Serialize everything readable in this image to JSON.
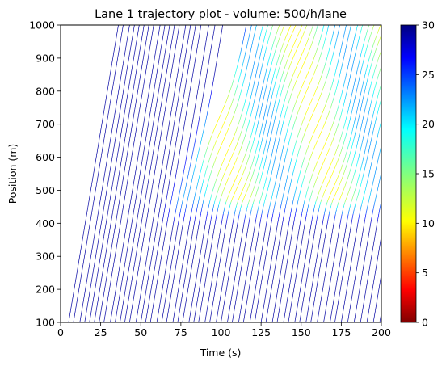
{
  "chart_data": {
    "type": "line",
    "title": "Lane 1 trajectory plot - volume: 500/h/lane",
    "xlabel": "Time (s)",
    "ylabel": "Position (m)",
    "xlim": [
      0,
      200
    ],
    "ylim": [
      100,
      1000
    ],
    "xticks": [
      "0",
      "25",
      "50",
      "75",
      "100",
      "125",
      "150",
      "175",
      "200"
    ],
    "yticks": [
      "100",
      "200",
      "300",
      "400",
      "500",
      "600",
      "700",
      "800",
      "900",
      "1000"
    ],
    "grid": false,
    "colorbar": {
      "range": [
        0,
        30
      ],
      "ticks": [
        "0",
        "5",
        "10",
        "15",
        "20",
        "25",
        "30"
      ],
      "colormap": "jet_reversed",
      "quantity": "speed"
    },
    "series_description": "vehicle trajectories (time vs position), line color encodes speed",
    "trajectory_entry_times": [
      5,
      8,
      12,
      15,
      18,
      21,
      24,
      27,
      31,
      34,
      37,
      40,
      43,
      47,
      50,
      53,
      56,
      60,
      63,
      66,
      70,
      73,
      76,
      80,
      83,
      86,
      90,
      93,
      97,
      100,
      104,
      107,
      111,
      114,
      118,
      121,
      125,
      128,
      132,
      135,
      139,
      142,
      146,
      149,
      153,
      156,
      160,
      164,
      168,
      171,
      175,
      179,
      183,
      187,
      191,
      195,
      199
    ],
    "free_flow_speed": 29,
    "slow_speed_range": [
      11,
      22
    ]
  }
}
